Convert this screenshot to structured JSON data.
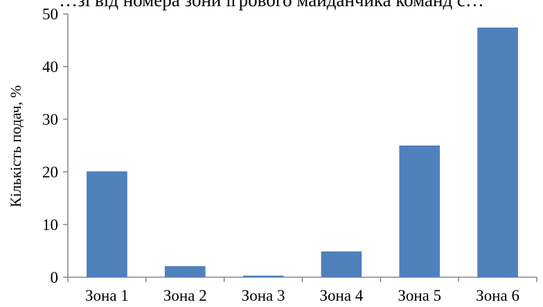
{
  "chart_data": {
    "type": "bar",
    "title": "…зі від номера зони ігрового майданчика команд с…",
    "xlabel": "",
    "ylabel": "Кількість подач, %",
    "categories": [
      "Зона 1",
      "Зона 2",
      "Зона 3",
      "Зона 4",
      "Зона 5",
      "Зона 6"
    ],
    "values": [
      20.1,
      2.1,
      0.3,
      4.9,
      25.0,
      47.4
    ],
    "ylim": [
      0,
      50
    ],
    "yticks": [
      0,
      10,
      20,
      30,
      40,
      50
    ],
    "grid": false,
    "legend": "none",
    "bar_color": "#4f81bd"
  }
}
